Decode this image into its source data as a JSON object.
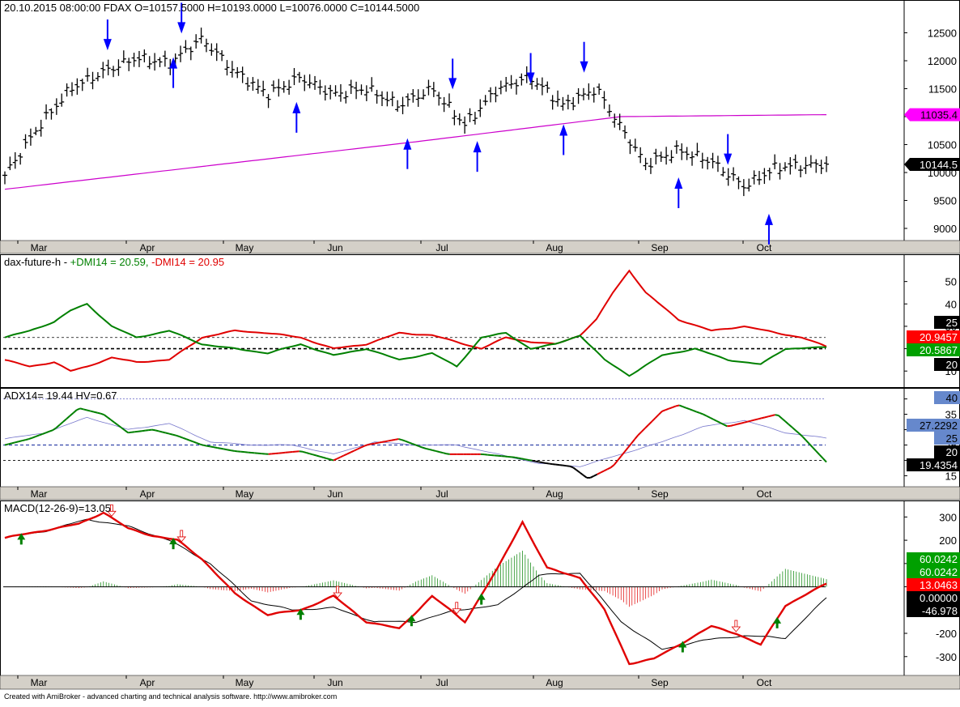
{
  "app": {
    "name": "AmiBroker"
  },
  "footer": {
    "text": "Created with AmiBroker - advanced charting and technical analysis software. http://www.amibroker.com"
  },
  "colors": {
    "price_bars": "#000000",
    "ma_line": "#cc00cc",
    "signal_arrow": "#0000ff",
    "plus_dmi": "#008000",
    "minus_dmi": "#e00000",
    "adx_rising": "#e00000",
    "adx_falling": "#008000",
    "adx_flat": "#000000",
    "hv_line": "#7777cc",
    "macd_line": "#e00000",
    "signal_line": "#000000",
    "hist_pos": "#008000",
    "hist_neg": "#e00000",
    "label_magenta": "#ff00ff",
    "label_red": "#ff0000",
    "label_green": "#00a000",
    "label_black": "#000000",
    "label_blue": "#6688cc"
  },
  "months": [
    "Mar",
    "Apr",
    "May",
    "Jun",
    "Jul",
    "Aug",
    "Sep",
    "Oct"
  ],
  "chart_data": [
    {
      "type": "line",
      "title": "20.10.2015 08:00:00  FDAX  O=10157.5000 H=10193.0000 L=10076.0000 C=10144.5000",
      "instrument": "FDAX",
      "ohlc": {
        "date": "20.10.2015 08:00:00",
        "O": 10157.5,
        "H": 10193.0,
        "L": 10076.0,
        "C": 10144.5
      },
      "yticks": [
        9000,
        9500,
        10000,
        10500,
        11000,
        11500,
        12000,
        12500
      ],
      "ylim": [
        8870,
        13000
      ],
      "value_labels": [
        "11035.4",
        "10144.5"
      ],
      "series": [
        {
          "kind": "price",
          "x": [
            0,
            0.04,
            0.08,
            0.12,
            0.16,
            0.2,
            0.24,
            0.28,
            0.32,
            0.36,
            0.4,
            0.44,
            0.48,
            0.52,
            0.56,
            0.6,
            0.64,
            0.68,
            0.72,
            0.75,
            0.78,
            0.82,
            0.86,
            0.9,
            0.94,
            1.0
          ],
          "values": [
            9950,
            10800,
            11500,
            11800,
            12050,
            11950,
            12400,
            11800,
            11400,
            11700,
            11400,
            11500,
            11200,
            11500,
            10850,
            11500,
            11700,
            11200,
            11500,
            10800,
            10150,
            10400,
            10200,
            9750,
            10100,
            10144.5
          ]
        },
        {
          "kind": "ma",
          "x": [
            0,
            0.5,
            0.75,
            1.0
          ],
          "values": [
            9700,
            10550,
            11000,
            11035.4
          ]
        }
      ],
      "arrows": [
        {
          "x": 0.125,
          "dir": "down",
          "value": 12100
        },
        {
          "x": 0.205,
          "dir": "up",
          "value": 12150
        },
        {
          "x": 0.215,
          "dir": "down",
          "value": 12400
        },
        {
          "x": 0.355,
          "dir": "up",
          "value": 11350
        },
        {
          "x": 0.49,
          "dir": "up",
          "value": 10700
        },
        {
          "x": 0.545,
          "dir": "down",
          "value": 11400
        },
        {
          "x": 0.575,
          "dir": "up",
          "value": 10650
        },
        {
          "x": 0.64,
          "dir": "down",
          "value": 11500
        },
        {
          "x": 0.68,
          "dir": "up",
          "value": 10950
        },
        {
          "x": 0.705,
          "dir": "down",
          "value": 11700
        },
        {
          "x": 0.82,
          "dir": "up",
          "value": 10000
        },
        {
          "x": 0.88,
          "dir": "down",
          "value": 10050
        },
        {
          "x": 0.93,
          "dir": "up",
          "value": 9350
        }
      ]
    },
    {
      "type": "line",
      "title_prefix": "dax-future-h -",
      "plus_label": "+DMI14 = 20.59,",
      "minus_label": "-DMI14 = 20.95",
      "yticks": [
        10,
        20,
        30,
        40,
        50
      ],
      "ylim": [
        5,
        60
      ],
      "hlines": [
        25,
        20
      ],
      "value_labels": [
        "25",
        "20.9457",
        "20.5867",
        "20"
      ],
      "series": [
        {
          "name": "+DMI14",
          "x": [
            0,
            0.03,
            0.06,
            0.08,
            0.1,
            0.13,
            0.16,
            0.2,
            0.24,
            0.28,
            0.32,
            0.36,
            0.4,
            0.44,
            0.48,
            0.52,
            0.55,
            0.58,
            0.61,
            0.64,
            0.67,
            0.7,
            0.73,
            0.76,
            0.8,
            0.84,
            0.88,
            0.92,
            0.95,
            1.0
          ],
          "values": [
            25,
            28,
            32,
            37,
            40,
            30,
            25,
            28,
            22,
            20,
            18,
            22,
            17,
            20,
            15,
            18,
            12,
            25,
            27,
            20,
            22,
            26,
            15,
            8,
            17,
            20,
            15,
            13,
            20,
            20.59
          ]
        },
        {
          "name": "-DMI14",
          "x": [
            0,
            0.03,
            0.06,
            0.08,
            0.1,
            0.13,
            0.16,
            0.2,
            0.24,
            0.28,
            0.32,
            0.36,
            0.4,
            0.44,
            0.48,
            0.52,
            0.55,
            0.58,
            0.61,
            0.64,
            0.67,
            0.7,
            0.72,
            0.74,
            0.76,
            0.78,
            0.82,
            0.86,
            0.9,
            0.94,
            0.97,
            1.0
          ],
          "values": [
            15,
            12,
            14,
            10,
            12,
            16,
            14,
            15,
            25,
            28,
            27,
            25,
            20,
            22,
            27,
            26,
            23,
            20,
            25,
            23,
            22,
            26,
            33,
            45,
            55,
            45,
            33,
            28,
            30,
            27,
            25,
            20.95
          ]
        }
      ]
    },
    {
      "type": "line",
      "title": "ADX14= 19.44  HV=0.67",
      "yticks": [
        15,
        20,
        25,
        30,
        35,
        40
      ],
      "ylim": [
        13,
        42
      ],
      "hlines": [
        40,
        25,
        20
      ],
      "value_labels": [
        "40",
        "27.2292",
        "25",
        "20",
        "19.4354"
      ],
      "series": [
        {
          "name": "ADX14",
          "x": [
            0,
            0.03,
            0.06,
            0.09,
            0.12,
            0.15,
            0.18,
            0.21,
            0.24,
            0.28,
            0.32,
            0.36,
            0.4,
            0.44,
            0.48,
            0.51,
            0.54,
            0.58,
            0.62,
            0.66,
            0.69,
            0.71,
            0.74,
            0.77,
            0.8,
            0.82,
            0.85,
            0.88,
            0.91,
            0.94,
            0.97,
            1.0
          ],
          "values": [
            25,
            27,
            30,
            37,
            35,
            29,
            30,
            28,
            25,
            23,
            22,
            23,
            20,
            25,
            27,
            24,
            22,
            22,
            21,
            19,
            18,
            14,
            18,
            28,
            36,
            38,
            35,
            31,
            33,
            35,
            28,
            19.44
          ]
        },
        {
          "name": "HV",
          "x": [
            0,
            0.05,
            0.1,
            0.15,
            0.2,
            0.25,
            0.3,
            0.35,
            0.4,
            0.45,
            0.5,
            0.55,
            0.6,
            0.65,
            0.7,
            0.75,
            0.8,
            0.85,
            0.9,
            0.95,
            1.0
          ],
          "values": [
            27,
            29,
            34,
            30,
            32,
            26,
            25,
            25,
            22,
            26,
            25,
            25,
            22,
            19,
            18,
            22,
            26,
            31,
            33,
            29,
            27.23
          ]
        }
      ]
    },
    {
      "type": "line",
      "title": "MACD(12-26-9)=13.05",
      "yticks": [
        -300,
        -200,
        0,
        100,
        200,
        300
      ],
      "ylim": [
        -360,
        350
      ],
      "value_labels": [
        "60.0242",
        "60.0242",
        "13.0463",
        "0.00000",
        "-46.978"
      ],
      "series": [
        {
          "name": "MACD",
          "x": [
            0,
            0.03,
            0.06,
            0.09,
            0.12,
            0.15,
            0.18,
            0.21,
            0.24,
            0.28,
            0.32,
            0.36,
            0.4,
            0.44,
            0.48,
            0.52,
            0.56,
            0.6,
            0.63,
            0.66,
            0.7,
            0.73,
            0.76,
            0.79,
            0.82,
            0.86,
            0.89,
            0.92,
            0.95,
            1.0
          ],
          "values": [
            210,
            230,
            250,
            270,
            320,
            250,
            220,
            200,
            120,
            -30,
            -120,
            -100,
            -40,
            -150,
            -180,
            -40,
            -150,
            80,
            280,
            80,
            40,
            -100,
            -330,
            -310,
            -250,
            -170,
            -200,
            -250,
            -80,
            13.05
          ]
        },
        {
          "name": "Signal",
          "x": [
            0,
            0.05,
            0.1,
            0.15,
            0.2,
            0.25,
            0.3,
            0.35,
            0.4,
            0.45,
            0.5,
            0.55,
            0.6,
            0.65,
            0.7,
            0.75,
            0.8,
            0.85,
            0.9,
            0.95,
            1.0
          ],
          "values": [
            210,
            240,
            290,
            260,
            200,
            100,
            -60,
            -100,
            -90,
            -150,
            -150,
            -100,
            -80,
            50,
            60,
            -150,
            -270,
            -230,
            -210,
            -220,
            -47
          ]
        }
      ],
      "buy_arrows": [
        0.02,
        0.205,
        0.36,
        0.495,
        0.58,
        0.825,
        0.94
      ],
      "sell_arrows": [
        0.13,
        0.215,
        0.405,
        0.55,
        0.89
      ]
    }
  ]
}
